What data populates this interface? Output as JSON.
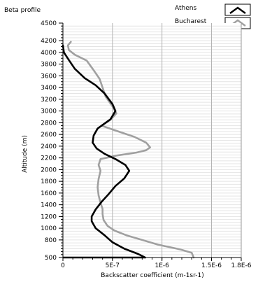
{
  "chart_data": {
    "type": "line",
    "title": "Beta profile",
    "xlabel": "Backscatter coefficient (m-1sr-1)",
    "ylabel": "Altitude (m)",
    "xlim": [
      0,
      1.8e-06
    ],
    "ylim": [
      500,
      4500
    ],
    "grid": true,
    "legend_position": "top-right",
    "x_ticks": [
      {
        "value": 0,
        "label": "0"
      },
      {
        "value": 5e-07,
        "label": "5E-7"
      },
      {
        "value": 1e-06,
        "label": "1E-6"
      },
      {
        "value": 1.5e-06,
        "label": "1.5E-6"
      },
      {
        "value": 1.8e-06,
        "label": "1.8E-6"
      }
    ],
    "y_ticks": [
      500,
      800,
      1000,
      1200,
      1400,
      1600,
      1800,
      2000,
      2200,
      2400,
      2600,
      2800,
      3000,
      3200,
      3400,
      3600,
      3800,
      4000,
      4200,
      4500
    ],
    "series": [
      {
        "name": "Athens",
        "color": "#000000",
        "points": [
          [
            8.3e-07,
            500
          ],
          [
            7.6e-07,
            560
          ],
          [
            6.2e-07,
            650
          ],
          [
            5e-07,
            760
          ],
          [
            4.2e-07,
            880
          ],
          [
            3.3e-07,
            1000
          ],
          [
            2.9e-07,
            1120
          ],
          [
            2.9e-07,
            1200
          ],
          [
            3.3e-07,
            1320
          ],
          [
            3.9e-07,
            1450
          ],
          [
            4.6e-07,
            1580
          ],
          [
            5.3e-07,
            1720
          ],
          [
            6.2e-07,
            1850
          ],
          [
            6.7e-07,
            1980
          ],
          [
            6.3e-07,
            2080
          ],
          [
            5.3e-07,
            2180
          ],
          [
            4.2e-07,
            2270
          ],
          [
            3.4e-07,
            2360
          ],
          [
            3e-07,
            2460
          ],
          [
            3.1e-07,
            2580
          ],
          [
            3.5e-07,
            2700
          ],
          [
            4.8e-07,
            2860
          ],
          [
            5.3e-07,
            3000
          ],
          [
            5e-07,
            3120
          ],
          [
            4.2e-07,
            3300
          ],
          [
            3.3e-07,
            3440
          ],
          [
            2.2e-07,
            3560
          ],
          [
            1.2e-07,
            3720
          ],
          [
            6e-08,
            3870
          ],
          [
            1e-08,
            4000
          ],
          [
            0.0,
            4120
          ]
        ]
      },
      {
        "name": "Bucharest",
        "color": "#a0a0a0",
        "points": [
          [
            1.32e-06,
            500
          ],
          [
            1.3e-06,
            580
          ],
          [
            1.18e-06,
            640
          ],
          [
            9.6e-07,
            720
          ],
          [
            8e-07,
            800
          ],
          [
            6.4e-07,
            880
          ],
          [
            5.2e-07,
            960
          ],
          [
            4.5e-07,
            1040
          ],
          [
            4.1e-07,
            1140
          ],
          [
            4e-07,
            1240
          ],
          [
            4e-07,
            1330
          ],
          [
            3.8e-07,
            1430
          ],
          [
            3.6e-07,
            1560
          ],
          [
            3.5e-07,
            1700
          ],
          [
            3.6e-07,
            1840
          ],
          [
            3.8e-07,
            1980
          ],
          [
            3.6e-07,
            2080
          ],
          [
            3.8e-07,
            2180
          ],
          [
            5.4e-07,
            2240
          ],
          [
            7.4e-07,
            2290
          ],
          [
            8.4e-07,
            2330
          ],
          [
            8.8e-07,
            2380
          ],
          [
            8.4e-07,
            2460
          ],
          [
            7.2e-07,
            2560
          ],
          [
            5.6e-07,
            2650
          ],
          [
            3.9e-07,
            2750
          ],
          [
            4.8e-07,
            2850
          ],
          [
            5.4e-07,
            2960
          ],
          [
            5e-07,
            3080
          ],
          [
            4.3e-07,
            3250
          ],
          [
            4e-07,
            3400
          ],
          [
            3.7e-07,
            3550
          ],
          [
            3e-07,
            3720
          ],
          [
            2.4e-07,
            3860
          ],
          [
            1.2e-07,
            3960
          ],
          [
            6e-08,
            4040
          ],
          [
            5e-08,
            4120
          ],
          [
            8e-08,
            4180
          ]
        ]
      }
    ]
  }
}
